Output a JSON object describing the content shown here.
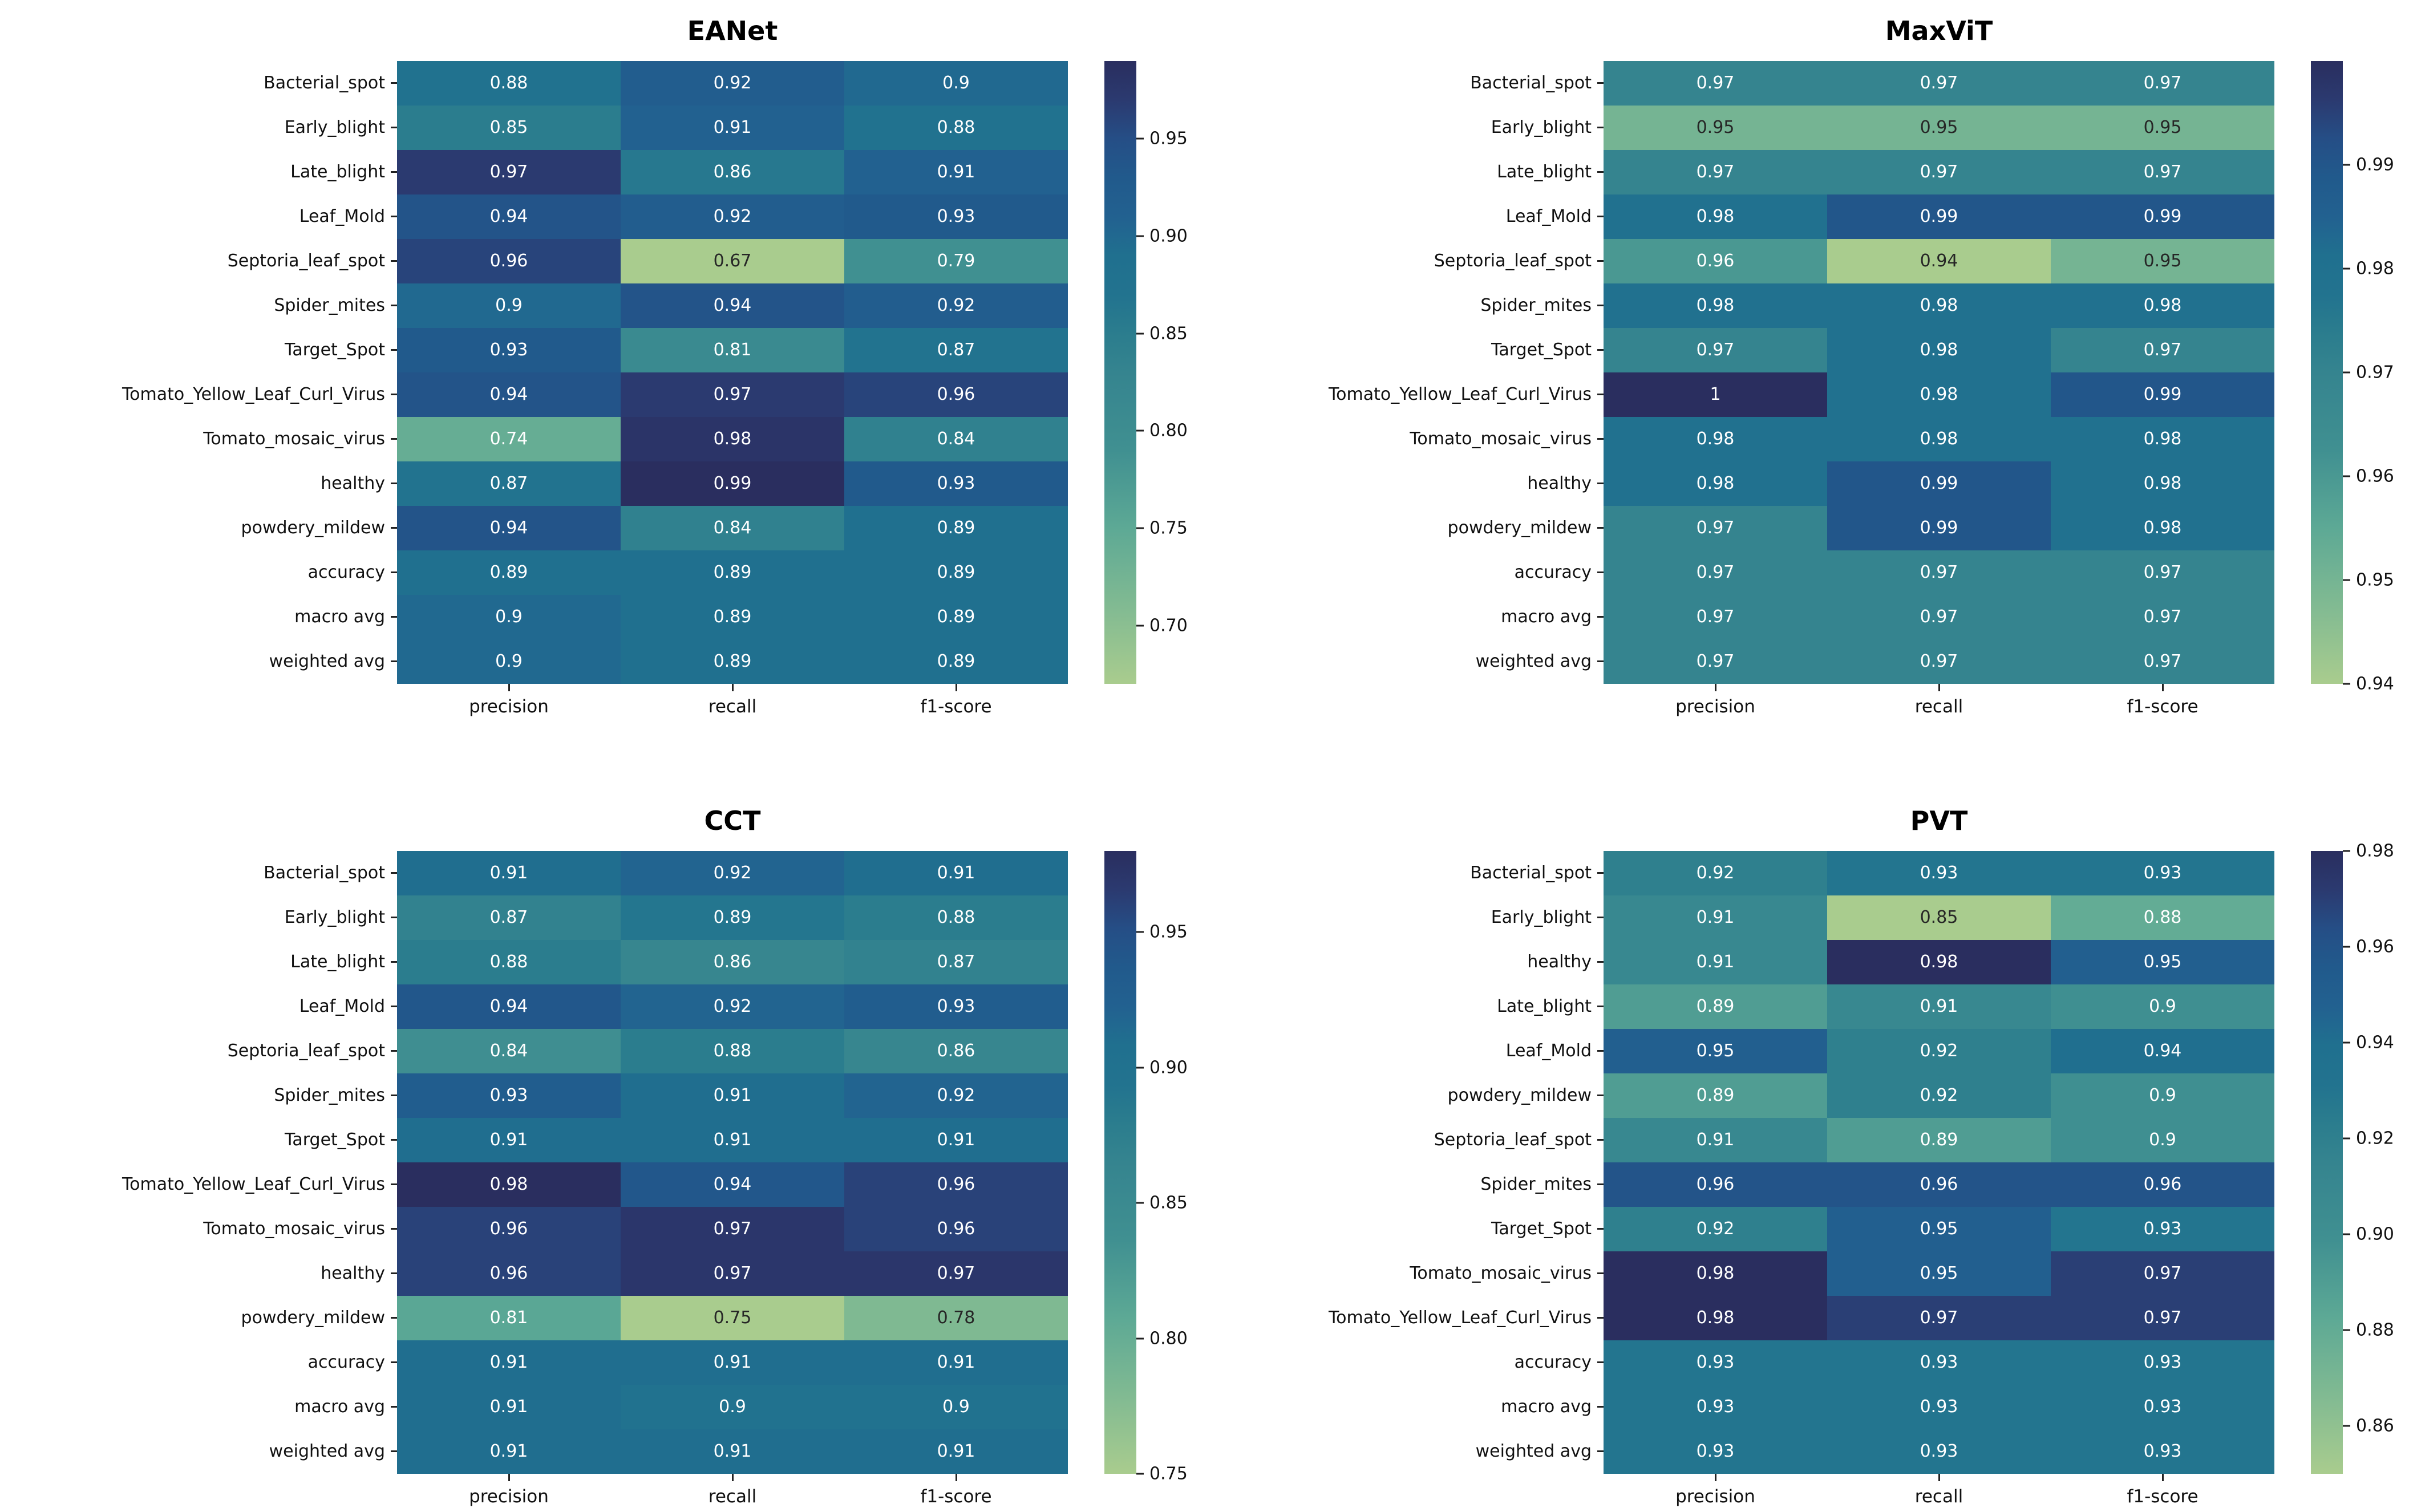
{
  "figure": {
    "background": "#ffffff"
  },
  "colormap": {
    "name": "crest-like-green-to-navy",
    "stops": [
      [
        0.0,
        "#a9cc8e"
      ],
      [
        0.125,
        "#81ba92"
      ],
      [
        0.25,
        "#5da995"
      ],
      [
        0.375,
        "#409091"
      ],
      [
        0.5,
        "#35848f"
      ],
      [
        0.5625,
        "#2b7d8e"
      ],
      [
        0.625,
        "#22738f"
      ],
      [
        0.6875,
        "#20708f"
      ],
      [
        0.75,
        "#226190"
      ],
      [
        0.8125,
        "#215a8c"
      ],
      [
        0.875,
        "#254e86"
      ],
      [
        0.9375,
        "#2b3a70"
      ],
      [
        1.0,
        "#2a2e5f"
      ]
    ],
    "annot_dark": "#262626",
    "annot_light": "#ffffff",
    "lum_threshold": 0.36,
    "tick_color": "#222222",
    "label_color": "#111111"
  },
  "chart_data": [
    {
      "type": "heatmap",
      "title": "EANet",
      "position": "top-left",
      "columns": [
        "precision",
        "recall",
        "f1-score"
      ],
      "rows": [
        "Bacterial_spot",
        "Early_blight",
        "Late_blight",
        "Leaf_Mold",
        "Septoria_leaf_spot",
        "Spider_mites",
        "Target_Spot",
        "Tomato_Yellow_Leaf_Curl_Virus",
        "Tomato_mosaic_virus",
        "healthy",
        "powdery_mildew",
        "accuracy",
        "macro avg",
        "weighted avg"
      ],
      "values": [
        [
          "0.88",
          "0.92",
          "0.9"
        ],
        [
          "0.85",
          "0.91",
          "0.88"
        ],
        [
          "0.97",
          "0.86",
          "0.91"
        ],
        [
          "0.94",
          "0.92",
          "0.93"
        ],
        [
          "0.96",
          "0.67",
          "0.79"
        ],
        [
          "0.9",
          "0.94",
          "0.92"
        ],
        [
          "0.93",
          "0.81",
          "0.87"
        ],
        [
          "0.94",
          "0.97",
          "0.96"
        ],
        [
          "0.74",
          "0.98",
          "0.84"
        ],
        [
          "0.87",
          "0.99",
          "0.93"
        ],
        [
          "0.94",
          "0.84",
          "0.89"
        ],
        [
          "0.89",
          "0.89",
          "0.89"
        ],
        [
          "0.9",
          "0.89",
          "0.89"
        ],
        [
          "0.9",
          "0.89",
          "0.89"
        ]
      ],
      "vmin": 0.67,
      "vmax": 0.99,
      "colorbar_ticks": [
        {
          "label": "0.95",
          "value": 0.95
        },
        {
          "label": "0.90",
          "value": 0.9
        },
        {
          "label": "0.85",
          "value": 0.85
        },
        {
          "label": "0.80",
          "value": 0.8
        },
        {
          "label": "0.75",
          "value": 0.75
        },
        {
          "label": "0.70",
          "value": 0.7
        }
      ]
    },
    {
      "type": "heatmap",
      "title": "MaxViT",
      "position": "top-right",
      "columns": [
        "precision",
        "recall",
        "f1-score"
      ],
      "rows": [
        "Bacterial_spot",
        "Early_blight",
        "Late_blight",
        "Leaf_Mold",
        "Septoria_leaf_spot",
        "Spider_mites",
        "Target_Spot",
        "Tomato_Yellow_Leaf_Curl_Virus",
        "Tomato_mosaic_virus",
        "healthy",
        "powdery_mildew",
        "accuracy",
        "macro avg",
        "weighted avg"
      ],
      "values": [
        [
          "0.97",
          "0.97",
          "0.97"
        ],
        [
          "0.95",
          "0.95",
          "0.95"
        ],
        [
          "0.97",
          "0.97",
          "0.97"
        ],
        [
          "0.98",
          "0.99",
          "0.99"
        ],
        [
          "0.96",
          "0.94",
          "0.95"
        ],
        [
          "0.98",
          "0.98",
          "0.98"
        ],
        [
          "0.97",
          "0.98",
          "0.97"
        ],
        [
          "1",
          "0.98",
          "0.99"
        ],
        [
          "0.98",
          "0.98",
          "0.98"
        ],
        [
          "0.98",
          "0.99",
          "0.98"
        ],
        [
          "0.97",
          "0.99",
          "0.98"
        ],
        [
          "0.97",
          "0.97",
          "0.97"
        ],
        [
          "0.97",
          "0.97",
          "0.97"
        ],
        [
          "0.97",
          "0.97",
          "0.97"
        ]
      ],
      "vmin": 0.94,
      "vmax": 1.0,
      "colorbar_ticks": [
        {
          "label": "0.99",
          "value": 0.99
        },
        {
          "label": "0.98",
          "value": 0.98
        },
        {
          "label": "0.97",
          "value": 0.97
        },
        {
          "label": "0.96",
          "value": 0.96
        },
        {
          "label": "0.95",
          "value": 0.95
        },
        {
          "label": "0.94",
          "value": 0.94
        }
      ]
    },
    {
      "type": "heatmap",
      "title": "CCT",
      "position": "bottom-left",
      "columns": [
        "precision",
        "recall",
        "f1-score"
      ],
      "rows": [
        "Bacterial_spot",
        "Early_blight",
        "Late_blight",
        "Leaf_Mold",
        "Septoria_leaf_spot",
        "Spider_mites",
        "Target_Spot",
        "Tomato_Yellow_Leaf_Curl_Virus",
        "Tomato_mosaic_virus",
        "healthy",
        "powdery_mildew",
        "accuracy",
        "macro avg",
        "weighted avg"
      ],
      "values": [
        [
          "0.91",
          "0.92",
          "0.91"
        ],
        [
          "0.87",
          "0.89",
          "0.88"
        ],
        [
          "0.88",
          "0.86",
          "0.87"
        ],
        [
          "0.94",
          "0.92",
          "0.93"
        ],
        [
          "0.84",
          "0.88",
          "0.86"
        ],
        [
          "0.93",
          "0.91",
          "0.92"
        ],
        [
          "0.91",
          "0.91",
          "0.91"
        ],
        [
          "0.98",
          "0.94",
          "0.96"
        ],
        [
          "0.96",
          "0.97",
          "0.96"
        ],
        [
          "0.96",
          "0.97",
          "0.97"
        ],
        [
          "0.81",
          "0.75",
          "0.78"
        ],
        [
          "0.91",
          "0.91",
          "0.91"
        ],
        [
          "0.91",
          "0.9",
          "0.9"
        ],
        [
          "0.91",
          "0.91",
          "0.91"
        ]
      ],
      "vmin": 0.75,
      "vmax": 0.98,
      "colorbar_ticks": [
        {
          "label": "0.95",
          "value": 0.95
        },
        {
          "label": "0.90",
          "value": 0.9
        },
        {
          "label": "0.85",
          "value": 0.85
        },
        {
          "label": "0.80",
          "value": 0.8
        },
        {
          "label": "0.75",
          "value": 0.75
        }
      ]
    },
    {
      "type": "heatmap",
      "title": "PVT",
      "position": "bottom-right",
      "columns": [
        "precision",
        "recall",
        "f1-score"
      ],
      "rows": [
        "Bacterial_spot",
        "Early_blight",
        "healthy",
        "Late_blight",
        "Leaf_Mold",
        "powdery_mildew",
        "Septoria_leaf_spot",
        "Spider_mites",
        "Target_Spot",
        "Tomato_mosaic_virus",
        "Tomato_Yellow_Leaf_Curl_Virus",
        "accuracy",
        "macro avg",
        "weighted avg"
      ],
      "values": [
        [
          "0.92",
          "0.93",
          "0.93"
        ],
        [
          "0.91",
          "0.85",
          "0.88"
        ],
        [
          "0.91",
          "0.98",
          "0.95"
        ],
        [
          "0.89",
          "0.91",
          "0.9"
        ],
        [
          "0.95",
          "0.92",
          "0.94"
        ],
        [
          "0.89",
          "0.92",
          "0.9"
        ],
        [
          "0.91",
          "0.89",
          "0.9"
        ],
        [
          "0.96",
          "0.96",
          "0.96"
        ],
        [
          "0.92",
          "0.95",
          "0.93"
        ],
        [
          "0.98",
          "0.95",
          "0.97"
        ],
        [
          "0.98",
          "0.97",
          "0.97"
        ],
        [
          "0.93",
          "0.93",
          "0.93"
        ],
        [
          "0.93",
          "0.93",
          "0.93"
        ],
        [
          "0.93",
          "0.93",
          "0.93"
        ]
      ],
      "vmin": 0.85,
      "vmax": 0.98,
      "colorbar_ticks": [
        {
          "label": "0.98",
          "value": 0.98
        },
        {
          "label": "0.96",
          "value": 0.96
        },
        {
          "label": "0.94",
          "value": 0.94
        },
        {
          "label": "0.92",
          "value": 0.92
        },
        {
          "label": "0.90",
          "value": 0.9
        },
        {
          "label": "0.88",
          "value": 0.88
        },
        {
          "label": "0.86",
          "value": 0.86
        }
      ]
    }
  ]
}
